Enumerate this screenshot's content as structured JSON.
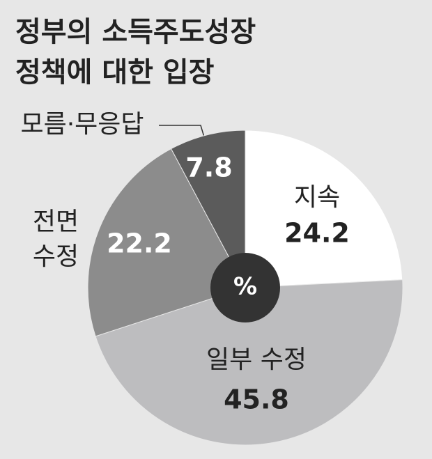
{
  "chart_data": {
    "type": "pie",
    "title": [
      "정부의 소득주도성장",
      "정책에 대한 입장"
    ],
    "categories": [
      "지속",
      "일부 수정",
      "전면 수정",
      "모름·무응답"
    ],
    "values": [
      24.2,
      45.8,
      22.2,
      7.8
    ],
    "colors": [
      "#ffffff",
      "#bdbdbf",
      "#8c8c8c",
      "#5b5b5b"
    ],
    "center_label": "%"
  }
}
